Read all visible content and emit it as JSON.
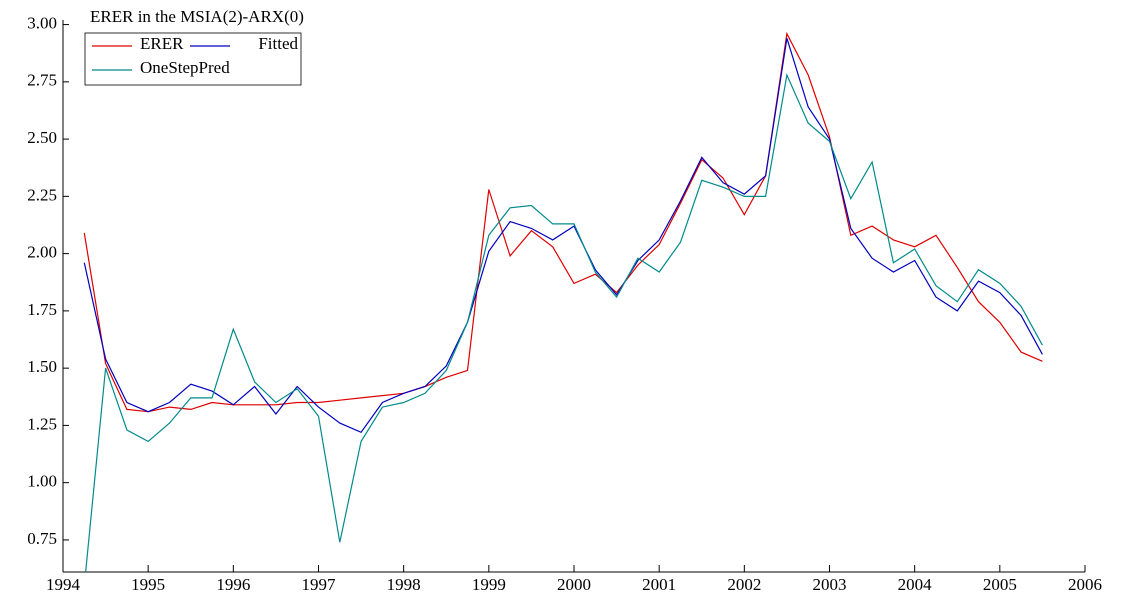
{
  "chart_data": {
    "type": "line",
    "title": "ERER in the MSIA(2)-ARX(0)",
    "x": [
      1994.25,
      1994.5,
      1994.75,
      1995,
      1995.25,
      1995.5,
      1995.75,
      1996,
      1996.25,
      1996.5,
      1996.75,
      1997,
      1997.25,
      1997.5,
      1997.75,
      1998,
      1998.25,
      1998.5,
      1998.75,
      1999,
      1999.25,
      1999.5,
      1999.75,
      2000,
      2000.25,
      2000.5,
      2000.75,
      2001,
      2001.25,
      2001.5,
      2001.75,
      2002,
      2002.25,
      2002.5,
      2002.75,
      2003,
      2003.25,
      2003.5,
      2003.75,
      2004,
      2004.25,
      2004.5,
      2004.75,
      2005,
      2005.25,
      2005.5
    ],
    "series": [
      {
        "name": "ERER",
        "color": "#e00000",
        "values": [
          2.09,
          1.52,
          1.32,
          1.31,
          1.33,
          1.32,
          1.35,
          1.34,
          1.34,
          1.34,
          1.35,
          1.35,
          1.36,
          1.37,
          1.38,
          1.39,
          1.42,
          1.46,
          1.49,
          2.28,
          1.99,
          2.1,
          2.03,
          1.87,
          1.91,
          1.83,
          1.95,
          2.04,
          2.22,
          2.41,
          2.33,
          2.17,
          2.34,
          2.96,
          2.78,
          2.51,
          2.08,
          2.12,
          2.06,
          2.03,
          2.08,
          1.94,
          1.79,
          1.7,
          1.57,
          1.53
        ]
      },
      {
        "name": "Fitted",
        "color": "#0000c0",
        "values": [
          1.96,
          1.54,
          1.35,
          1.31,
          1.35,
          1.43,
          1.4,
          1.34,
          1.42,
          1.3,
          1.42,
          1.33,
          1.26,
          1.22,
          1.35,
          1.39,
          1.42,
          1.51,
          1.7,
          2.01,
          2.14,
          2.11,
          2.06,
          2.12,
          1.93,
          1.82,
          1.97,
          2.06,
          2.23,
          2.42,
          2.31,
          2.26,
          2.34,
          2.94,
          2.64,
          2.5,
          2.11,
          1.98,
          1.92,
          1.97,
          1.81,
          1.75,
          1.88,
          1.83,
          1.73,
          1.56
        ]
      },
      {
        "name": "OneStepPred",
        "color": "#008b8b",
        "values": [
          0.55,
          1.5,
          1.23,
          1.18,
          1.26,
          1.37,
          1.37,
          1.67,
          1.44,
          1.35,
          1.41,
          1.29,
          0.74,
          1.18,
          1.33,
          1.35,
          1.39,
          1.49,
          1.7,
          2.08,
          2.2,
          2.21,
          2.13,
          2.13,
          1.92,
          1.81,
          1.98,
          1.92,
          2.05,
          2.32,
          2.29,
          2.25,
          2.25,
          2.78,
          2.57,
          2.49,
          2.24,
          2.4,
          1.96,
          2.02,
          1.86,
          1.79,
          1.93,
          1.87,
          1.77,
          1.6
        ]
      }
    ],
    "xlim": [
      1994,
      2006
    ],
    "xticks": [
      1994,
      1995,
      1996,
      1997,
      1998,
      1999,
      2000,
      2001,
      2002,
      2003,
      2004,
      2005,
      2006
    ],
    "ylim": [
      0.61,
      3.02
    ],
    "yticks": [
      {
        "value": 0.75,
        "label": "0.75"
      },
      {
        "value": 1,
        "label": "1.00"
      },
      {
        "value": 1.25,
        "label": "1.25"
      },
      {
        "value": 1.5,
        "label": "1.50"
      },
      {
        "value": 1.75,
        "label": "1.75"
      },
      {
        "value": 2,
        "label": "2.00"
      },
      {
        "value": 2.25,
        "label": "2.25"
      },
      {
        "value": 2.5,
        "label": "2.50"
      },
      {
        "value": 2.75,
        "label": "2.75"
      },
      {
        "value": 3,
        "label": "3.00"
      }
    ],
    "grid": false
  }
}
